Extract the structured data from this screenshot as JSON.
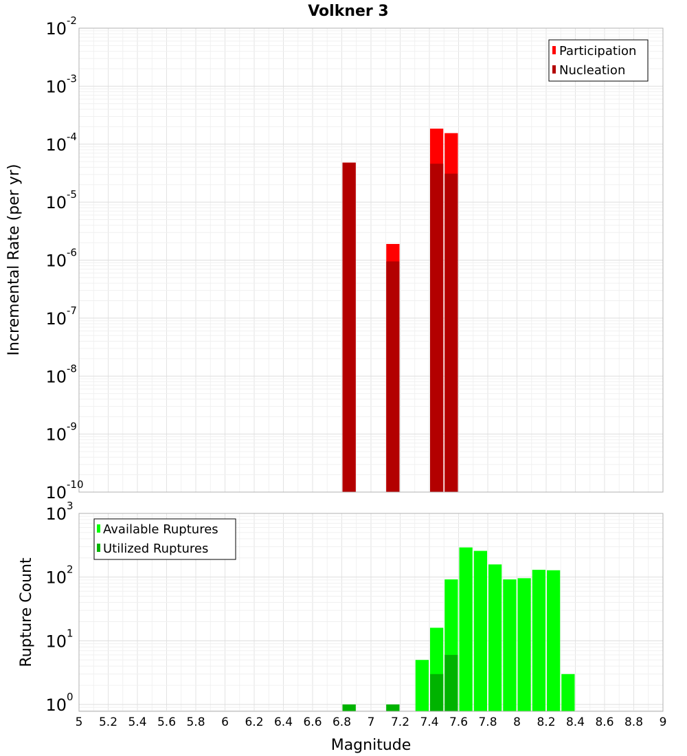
{
  "chart_data": [
    {
      "type": "bar",
      "title": "Volkner 3",
      "xlabel": "",
      "ylabel": "Incremental Rate (per yr)",
      "y_scale": "log",
      "ylim": [
        1e-10,
        0.01
      ],
      "xlim": [
        5,
        9
      ],
      "grid": true,
      "legend_position": "top-right",
      "y_ticks": [
        {
          "base": "10",
          "exp": "-10"
        },
        {
          "base": "10",
          "exp": "-9"
        },
        {
          "base": "10",
          "exp": "-8"
        },
        {
          "base": "10",
          "exp": "-7"
        },
        {
          "base": "10",
          "exp": "-6"
        },
        {
          "base": "10",
          "exp": "-5"
        },
        {
          "base": "10",
          "exp": "-4"
        },
        {
          "base": "10",
          "exp": "-3"
        },
        {
          "base": "10",
          "exp": "-2"
        }
      ],
      "series": [
        {
          "name": "Participation",
          "color": "#ff0000",
          "x": [
            6.85,
            7.15,
            7.45,
            7.55
          ],
          "values": [
            4.8e-05,
            1.9e-06,
            0.000185,
            0.000155
          ]
        },
        {
          "name": "Nucleation",
          "color": "#b30000",
          "x": [
            6.85,
            7.15,
            7.45,
            7.55
          ],
          "values": [
            4.8e-05,
            9.5e-07,
            4.6e-05,
            3.1e-05
          ]
        }
      ]
    },
    {
      "type": "bar",
      "title": "",
      "xlabel": "Magnitude",
      "ylabel": "Rupture Count",
      "y_scale": "log",
      "ylim": [
        0.78,
        1000
      ],
      "xlim": [
        5,
        9
      ],
      "grid": true,
      "legend_position": "top-left",
      "y_ticks": [
        {
          "base": "10",
          "exp": "0"
        },
        {
          "base": "10",
          "exp": "1"
        },
        {
          "base": "10",
          "exp": "2"
        },
        {
          "base": "10",
          "exp": "3"
        }
      ],
      "x_ticks": [
        "5",
        "5.2",
        "5.4",
        "5.6",
        "5.8",
        "6",
        "6.2",
        "6.4",
        "6.6",
        "6.8",
        "7",
        "7.2",
        "7.4",
        "7.6",
        "7.8",
        "8",
        "8.2",
        "8.4",
        "8.6",
        "8.8",
        "9"
      ],
      "series": [
        {
          "name": "Available Ruptures",
          "color": "#00ff00",
          "x": [
            6.85,
            7.15,
            7.35,
            7.45,
            7.55,
            7.65,
            7.75,
            7.85,
            7.95,
            8.05,
            8.15,
            8.25,
            8.35
          ],
          "values": [
            1,
            1,
            5,
            16,
            92,
            292,
            258,
            158,
            92,
            96,
            130,
            128,
            3
          ]
        },
        {
          "name": "Utilized Ruptures",
          "color": "#00b300",
          "x": [
            6.85,
            7.15,
            7.45,
            7.55
          ],
          "values": [
            1,
            1,
            3,
            6
          ]
        }
      ]
    }
  ]
}
